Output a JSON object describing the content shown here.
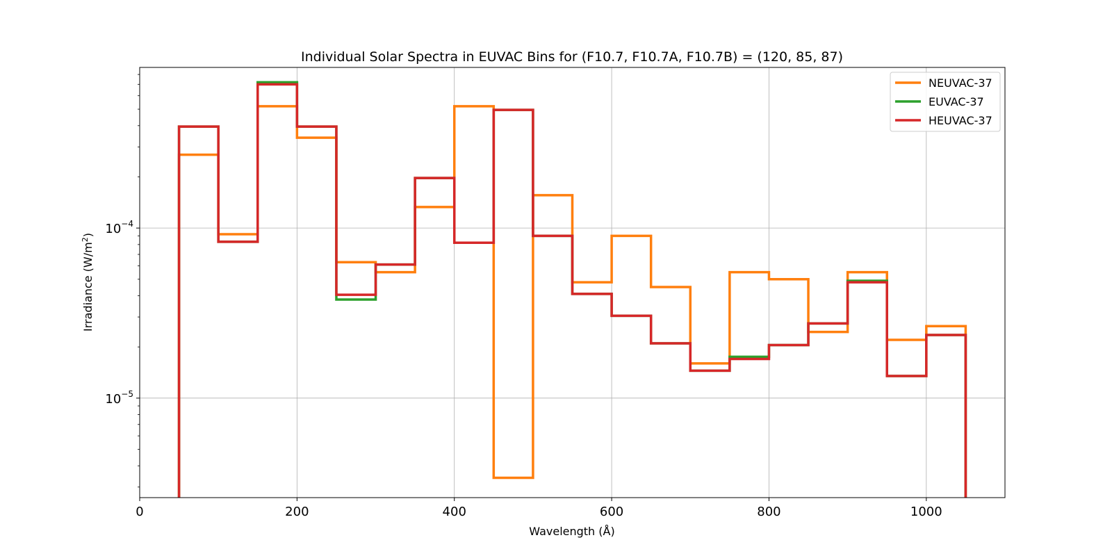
{
  "chart_data": {
    "type": "line",
    "step": "post",
    "title": "Individual Solar Spectra in EUVAC Bins for (F10.7, F10.7A, F10.7B) = (120, 85, 87)",
    "xlabel": "Wavelength (Å)",
    "ylabel_main": "Irradiance (W/m",
    "ylabel_sup": "2",
    "ylabel_end": ")",
    "yscale": "log",
    "xlim": [
      0,
      1100
    ],
    "ylim": [
      2.6e-06,
      0.00088
    ],
    "xticks": [
      {
        "value": 0,
        "label": "0"
      },
      {
        "value": 200,
        "label": "200"
      },
      {
        "value": 400,
        "label": "400"
      },
      {
        "value": 600,
        "label": "600"
      },
      {
        "value": 800,
        "label": "800"
      },
      {
        "value": 1000,
        "label": "1000"
      }
    ],
    "yticks": [
      {
        "value": 1e-05,
        "base": "10",
        "exp": "−5"
      },
      {
        "value": 0.0001,
        "base": "10",
        "exp": "−4"
      }
    ],
    "grid": true,
    "legend_position": "top-right",
    "bin_edges": [
      50,
      100,
      150,
      200,
      250,
      300,
      350,
      400,
      450,
      500,
      550,
      600,
      650,
      700,
      750,
      800,
      850,
      900,
      950,
      1000,
      1050
    ],
    "series": [
      {
        "name": "NEUVAC-37",
        "color": "#ff7f0e",
        "values": [
          0.00027,
          9.2e-05,
          0.00052,
          0.00034,
          6.3e-05,
          5.5e-05,
          0.000133,
          0.00052,
          3.4e-06,
          0.000156,
          4.8e-05,
          9e-05,
          4.5e-05,
          1.6e-05,
          5.5e-05,
          5e-05,
          2.45e-05,
          5.5e-05,
          2.2e-05,
          2.65e-05
        ]
      },
      {
        "name": "EUVAC-37",
        "color": "#2ca02c",
        "values": [
          0.000395,
          8.3e-05,
          0.00072,
          0.000395,
          3.8e-05,
          6.1e-05,
          0.000197,
          8.2e-05,
          0.000495,
          9e-05,
          4.1e-05,
          3.05e-05,
          2.1e-05,
          1.45e-05,
          1.75e-05,
          2.05e-05,
          2.75e-05,
          4.9e-05,
          1.35e-05,
          2.35e-05
        ]
      },
      {
        "name": "HEUVAC-37",
        "color": "#d62728",
        "values": [
          0.000395,
          8.3e-05,
          0.0007,
          0.000395,
          4.05e-05,
          6.1e-05,
          0.000197,
          8.2e-05,
          0.000495,
          9e-05,
          4.1e-05,
          3.05e-05,
          2.1e-05,
          1.45e-05,
          1.7e-05,
          2.05e-05,
          2.75e-05,
          4.8e-05,
          1.35e-05,
          2.35e-05
        ]
      }
    ]
  }
}
